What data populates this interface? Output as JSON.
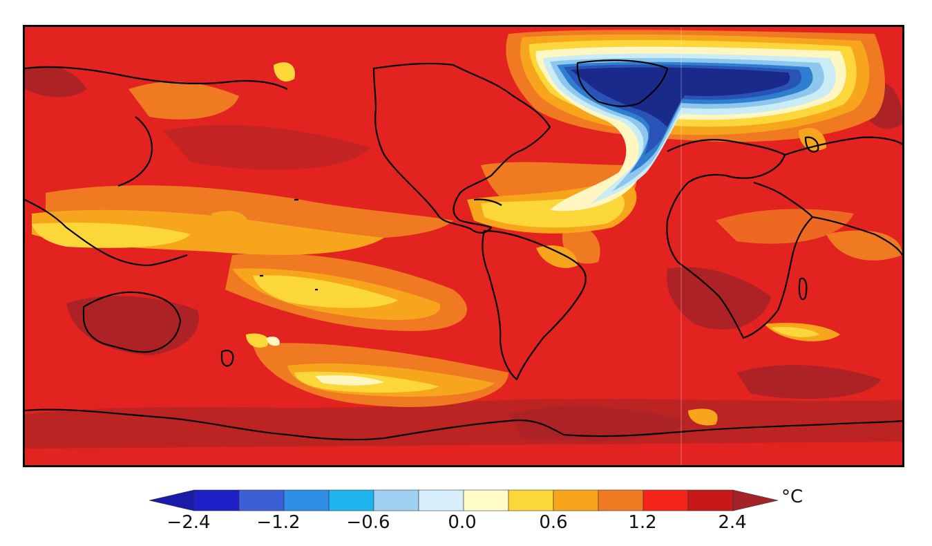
{
  "map": {
    "description_colors": {
      "deep_red": "#a32428",
      "red": "#e2231f",
      "orange": "#f07a22",
      "amber": "#f7a51c",
      "yellow": "#fbd73a",
      "pale_yellow": "#fff6c2",
      "white": "#ffffff",
      "pale_blue": "#c9ecf7",
      "light_blue": "#8fc6ee",
      "blue": "#2f7fd0",
      "mid_blue": "#2a53b8",
      "navy": "#1a2a8a",
      "coast": "#000000"
    }
  },
  "colorbar": {
    "unit": "°C",
    "ticks": [
      "−2.4",
      "−1.2",
      "−0.6",
      "0.0",
      "0.6",
      "1.2",
      "2.4"
    ],
    "colors": [
      "#1a1ba8",
      "#1f1fc8",
      "#3a5fd6",
      "#2f8ee6",
      "#1fb4ee",
      "#9fd0f2",
      "#d6eefa",
      "#fffcc8",
      "#fbd73a",
      "#f7a51c",
      "#f07a22",
      "#f52318",
      "#c8181a",
      "#a32428"
    ]
  }
}
